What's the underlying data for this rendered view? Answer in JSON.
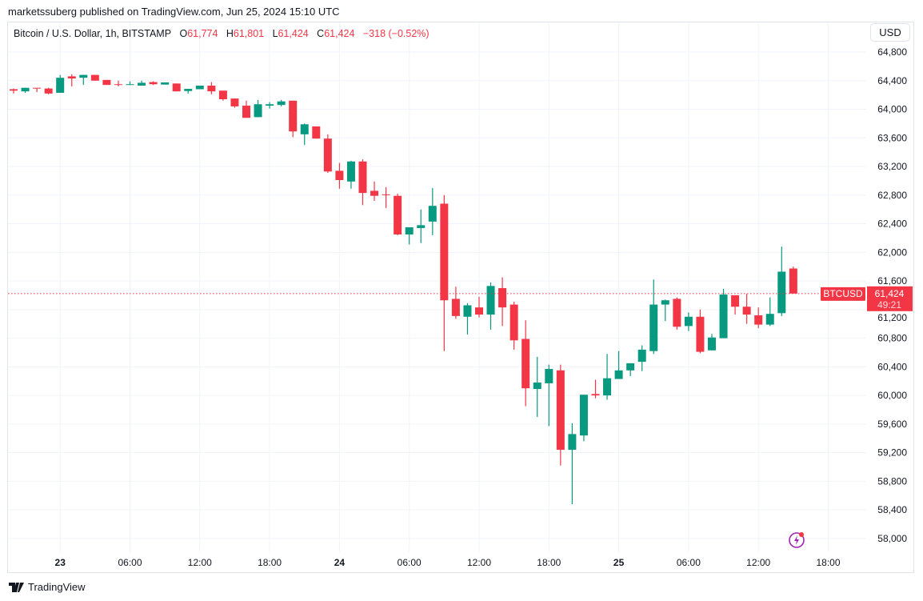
{
  "header": {
    "published": "marketssuberg published on TradingView.com, Jun 25, 2024 15:10 UTC"
  },
  "legend": {
    "symbol": "Bitcoin / U.S. Dollar, 1h, BITSTAMP",
    "o_label": "O",
    "o": "61,774",
    "h_label": "H",
    "h": "61,801",
    "l_label": "L",
    "l": "61,424",
    "c_label": "C",
    "c": "61,424",
    "change": "−318 (−0.52%)"
  },
  "currency_button": "USD",
  "last_price": {
    "symbol_tag": "BTCUSD",
    "price": "61,424",
    "countdown": "49:21",
    "value": 61424
  },
  "footer": {
    "brand": "TradingView"
  },
  "colors": {
    "up": "#089981",
    "down": "#f23645",
    "grid": "#f0f3fa",
    "alert": "#9c27b0"
  },
  "chart_data": {
    "type": "candlestick",
    "title": "Bitcoin / U.S. Dollar, 1h, BITSTAMP",
    "interval": "1h",
    "first_candle": "Jun 22 20:00",
    "ylim": [
      57900,
      64900
    ],
    "grid": true,
    "y_ticks": [
      "64,800",
      "64,400",
      "64,000",
      "63,600",
      "63,200",
      "62,800",
      "62,400",
      "62,000",
      "61,600",
      "61,200",
      "60,800",
      "60,400",
      "60,000",
      "59,600",
      "59,200",
      "58,800",
      "58,400",
      "58,000"
    ],
    "y_tick_values": [
      64800,
      64400,
      64000,
      63600,
      63200,
      62800,
      62400,
      62000,
      61600,
      61200,
      60800,
      60400,
      60000,
      59600,
      59200,
      58800,
      58400,
      58000
    ],
    "x_ticks": [
      {
        "label": "23",
        "hour": 4,
        "bold": true
      },
      {
        "label": "06:00",
        "hour": 10
      },
      {
        "label": "12:00",
        "hour": 16
      },
      {
        "label": "18:00",
        "hour": 22
      },
      {
        "label": "24",
        "hour": 28,
        "bold": true
      },
      {
        "label": "06:00",
        "hour": 34
      },
      {
        "label": "12:00",
        "hour": 40
      },
      {
        "label": "18:00",
        "hour": 46
      },
      {
        "label": "25",
        "hour": 52,
        "bold": true
      },
      {
        "label": "06:00",
        "hour": 58
      },
      {
        "label": "12:00",
        "hour": 64
      },
      {
        "label": "18:00",
        "hour": 70
      }
    ],
    "ohlc": [
      [
        64280,
        64290,
        64220,
        64260
      ],
      [
        64250,
        64300,
        64230,
        64300
      ],
      [
        64300,
        64300,
        64240,
        64290
      ],
      [
        64290,
        64300,
        64210,
        64220
      ],
      [
        64230,
        64480,
        64230,
        64440
      ],
      [
        64460,
        64490,
        64320,
        64430
      ],
      [
        64440,
        64480,
        64340,
        64480
      ],
      [
        64480,
        64480,
        64400,
        64400
      ],
      [
        64410,
        64410,
        64340,
        64340
      ],
      [
        64350,
        64400,
        64320,
        64340
      ],
      [
        64340,
        64390,
        64340,
        64350
      ],
      [
        64330,
        64400,
        64330,
        64370
      ],
      [
        64380,
        64390,
        64340,
        64350
      ],
      [
        64345,
        64375,
        64345,
        64375
      ],
      [
        64360,
        64360,
        64250,
        64250
      ],
      [
        64255,
        64285,
        64220,
        64285
      ],
      [
        64280,
        64330,
        64280,
        64330
      ],
      [
        64330,
        64380,
        64210,
        64250
      ],
      [
        64260,
        64260,
        64120,
        64140
      ],
      [
        64150,
        64150,
        64020,
        64040
      ],
      [
        64050,
        64120,
        63880,
        63880
      ],
      [
        63890,
        64130,
        63890,
        64070
      ],
      [
        64050,
        64100,
        64010,
        64070
      ],
      [
        64060,
        64130,
        64040,
        64110
      ],
      [
        64120,
        64120,
        63610,
        63690
      ],
      [
        63650,
        63800,
        63500,
        63790
      ],
      [
        63760,
        63760,
        63590,
        63590
      ],
      [
        63590,
        63650,
        63110,
        63130
      ],
      [
        63140,
        63250,
        62890,
        63010
      ],
      [
        62990,
        63280,
        62890,
        63270
      ],
      [
        63270,
        63300,
        62660,
        62830
      ],
      [
        62860,
        62990,
        62720,
        62790
      ],
      [
        62810,
        62910,
        62620,
        62800
      ],
      [
        62790,
        62820,
        62240,
        62250
      ],
      [
        62250,
        62350,
        62110,
        62350
      ],
      [
        62340,
        62600,
        62130,
        62380
      ],
      [
        62430,
        62900,
        62240,
        62650
      ],
      [
        62680,
        62800,
        60620,
        61330
      ],
      [
        61350,
        61520,
        61070,
        61110
      ],
      [
        61100,
        61290,
        60850,
        61260
      ],
      [
        61230,
        61380,
        61090,
        61130
      ],
      [
        61130,
        61580,
        60920,
        61530
      ],
      [
        61500,
        61650,
        60970,
        61230
      ],
      [
        61270,
        61310,
        60640,
        60770
      ],
      [
        60790,
        61050,
        59850,
        60100
      ],
      [
        60090,
        60540,
        59700,
        60180
      ],
      [
        60170,
        60430,
        59570,
        60370
      ],
      [
        60350,
        60430,
        59020,
        59240
      ],
      [
        59240,
        59610,
        58480,
        59460
      ],
      [
        59440,
        60010,
        59360,
        60010
      ],
      [
        60020,
        60220,
        59960,
        60000
      ],
      [
        60000,
        60580,
        59940,
        60240
      ],
      [
        60230,
        60620,
        60230,
        60350
      ],
      [
        60350,
        60450,
        60270,
        60450
      ],
      [
        60470,
        60700,
        60340,
        60640
      ],
      [
        60620,
        61620,
        60580,
        61270
      ],
      [
        61270,
        61340,
        61040,
        61330
      ],
      [
        61350,
        61370,
        60920,
        60960
      ],
      [
        60970,
        61160,
        60900,
        61100
      ],
      [
        61100,
        61200,
        60590,
        60610
      ],
      [
        60630,
        60860,
        60630,
        60810
      ],
      [
        60800,
        61490,
        60800,
        61410
      ],
      [
        61400,
        61400,
        61130,
        61240
      ],
      [
        61240,
        61420,
        61000,
        61130
      ],
      [
        61120,
        61230,
        60940,
        60990
      ],
      [
        60990,
        61370,
        60970,
        61140
      ],
      [
        61150,
        62080,
        61110,
        61730
      ],
      [
        61774,
        61801,
        61424,
        61424
      ]
    ]
  }
}
